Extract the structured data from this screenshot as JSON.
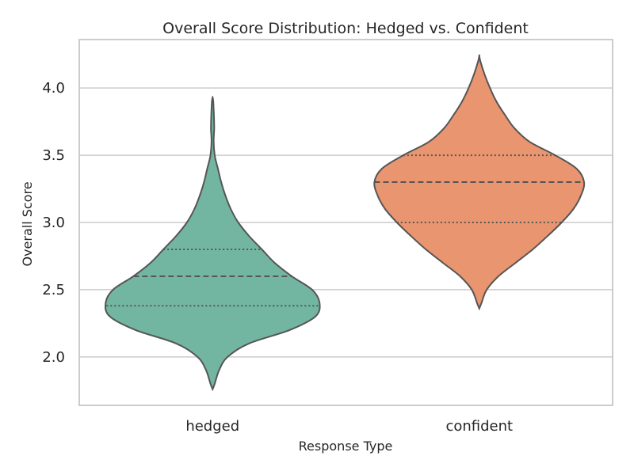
{
  "chart_data": {
    "type": "violin",
    "title": "Overall Score Distribution: Hedged vs. Confident",
    "xlabel": "Response Type",
    "ylabel": "Overall Score",
    "ylim": [
      1.64,
      4.36
    ],
    "yticks": [
      "2.0",
      "2.5",
      "3.0",
      "3.5",
      "4.0"
    ],
    "categories": [
      "hedged",
      "confident"
    ],
    "grid": "horizontal",
    "series": [
      {
        "category": "hedged",
        "color": "#72b6a1",
        "q1": 2.38,
        "median": 2.6,
        "q3": 2.8,
        "profile": [
          [
            1.76,
            0.0
          ],
          [
            1.8,
            0.02
          ],
          [
            1.9,
            0.06
          ],
          [
            2.0,
            0.14
          ],
          [
            2.1,
            0.34
          ],
          [
            2.2,
            0.72
          ],
          [
            2.3,
            0.96
          ],
          [
            2.4,
            1.0
          ],
          [
            2.5,
            0.93
          ],
          [
            2.6,
            0.74
          ],
          [
            2.7,
            0.58
          ],
          [
            2.8,
            0.46
          ],
          [
            2.9,
            0.34
          ],
          [
            3.0,
            0.24
          ],
          [
            3.1,
            0.17
          ],
          [
            3.2,
            0.12
          ],
          [
            3.3,
            0.08
          ],
          [
            3.4,
            0.05
          ],
          [
            3.5,
            0.02
          ],
          [
            3.6,
            0.01
          ],
          [
            3.7,
            0.015
          ],
          [
            3.8,
            0.012
          ],
          [
            3.9,
            0.006
          ],
          [
            3.93,
            0.0
          ]
        ]
      },
      {
        "category": "confident",
        "color": "#e9956f",
        "q1": 3.0,
        "median": 3.3,
        "q3": 3.5,
        "profile": [
          [
            2.36,
            0.0
          ],
          [
            2.4,
            0.02
          ],
          [
            2.5,
            0.07
          ],
          [
            2.6,
            0.18
          ],
          [
            2.7,
            0.34
          ],
          [
            2.8,
            0.5
          ],
          [
            2.9,
            0.64
          ],
          [
            3.0,
            0.77
          ],
          [
            3.1,
            0.88
          ],
          [
            3.2,
            0.95
          ],
          [
            3.3,
            0.98
          ],
          [
            3.4,
            0.91
          ],
          [
            3.5,
            0.71
          ],
          [
            3.6,
            0.47
          ],
          [
            3.7,
            0.33
          ],
          [
            3.8,
            0.24
          ],
          [
            3.9,
            0.16
          ],
          [
            4.0,
            0.1
          ],
          [
            4.1,
            0.05
          ],
          [
            4.2,
            0.01
          ],
          [
            4.24,
            0.0
          ]
        ]
      }
    ]
  }
}
